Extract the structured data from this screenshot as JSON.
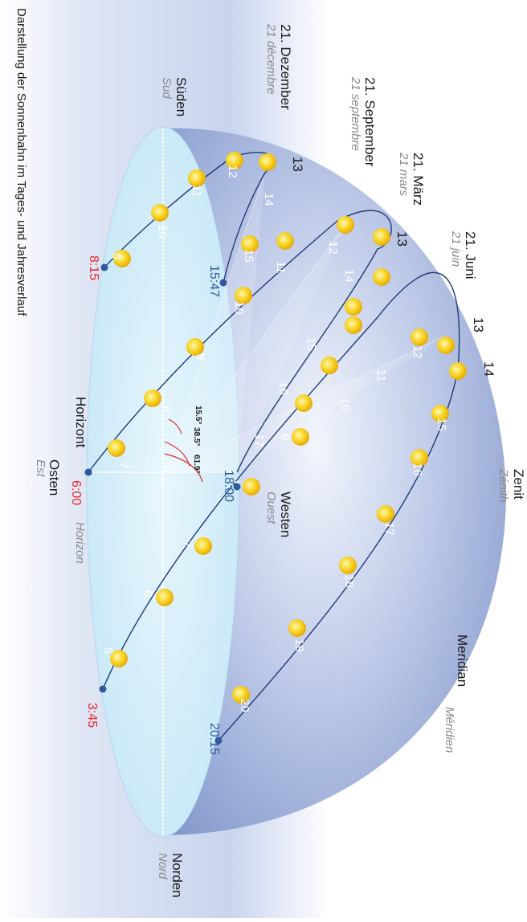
{
  "labels": {
    "zenith_de": "Zenit",
    "zenith_fr": "Zénith",
    "meridian_de": "Meridian",
    "meridian_fr": "Méridien",
    "west_de": "Westen",
    "west_fr": "Ouest",
    "east_de": "Osten",
    "east_fr": "Est",
    "south_de": "Süden",
    "south_fr": "Sud",
    "north_de": "Norden",
    "north_fr": "Nord",
    "horizon_de": "Horizont",
    "horizon_fr": "Horizon"
  },
  "dates": {
    "june_de": "21. Juni",
    "june_fr": "21 juin",
    "march_de": "21. März",
    "march_fr": "21 mars",
    "september_de": "21. September",
    "september_fr": "21 septembre",
    "december_de": "21. Dezember",
    "december_fr": "21 décembre"
  },
  "times": {
    "summer_sunrise": "3:45",
    "summer_sunset": "20:15",
    "equinox_sunrise": "6:00",
    "equinox_sunset": "18:00",
    "winter_sunrise": "8:15",
    "winter_sunset": "15:47"
  },
  "angles": {
    "winter": "15.5°",
    "equinox": "38.5°",
    "summer": "61.9°"
  },
  "path_labels": {
    "june_13": "13",
    "june_14": "14",
    "march_13": "13",
    "december_13": "13"
  },
  "hours": {
    "summer": [
      "5",
      "6",
      "7",
      "8",
      "9",
      "10",
      "11",
      "12",
      "15",
      "16",
      "17",
      "18",
      "19",
      "20"
    ],
    "equinox": [
      "7",
      "8",
      "9",
      "10",
      "11",
      "12",
      "14",
      "15",
      "16",
      "17"
    ],
    "winter": [
      "9",
      "10",
      "11",
      "12",
      "14",
      "15"
    ]
  },
  "caption": {
    "line1": "Darstellung der Sonnenbahn im Tages- und Jahresverlauf"
  },
  "colors": {
    "dome": "#8fa3d2",
    "horizon_disc": "#d6effb",
    "sun": "#f4c81a",
    "sunrise_red": "#e8262a",
    "sunset_blue": "#2f5b9c"
  }
}
